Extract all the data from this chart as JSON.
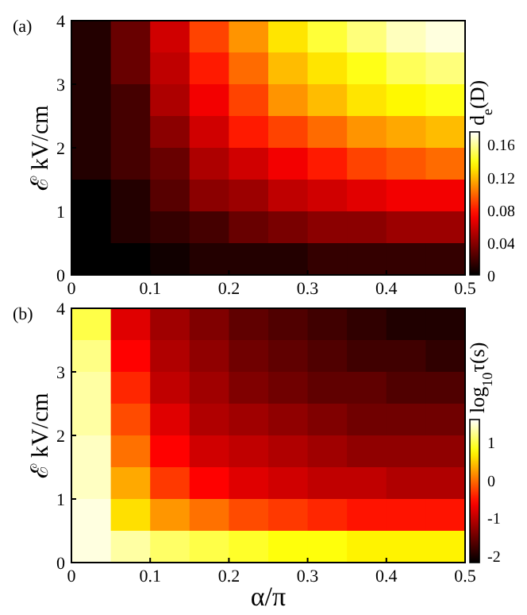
{
  "chart_data": [
    {
      "type": "heatmap",
      "title": "(a)",
      "ylabel": "ℰ  kV/cm",
      "clabel": "d$_{e}$(D)",
      "xlim": [
        0,
        0.5
      ],
      "ylim": [
        0,
        4
      ],
      "xticks": [
        0,
        0.1,
        0.2,
        0.3,
        0.4,
        0.5
      ],
      "yticks": [
        0,
        1,
        2,
        3,
        4
      ],
      "clim": [
        0,
        0.175
      ],
      "cticks": [
        0,
        0.04,
        0.08,
        0.12,
        0.16
      ],
      "cells": [
        [
          0.01,
          0.03,
          0.06,
          0.09,
          0.11,
          0.13,
          0.145,
          0.155,
          0.165,
          0.17
        ],
        [
          0.01,
          0.03,
          0.055,
          0.08,
          0.1,
          0.12,
          0.13,
          0.14,
          0.15,
          0.155
        ],
        [
          0.01,
          0.02,
          0.05,
          0.07,
          0.09,
          0.11,
          0.12,
          0.13,
          0.135,
          0.14
        ],
        [
          0.01,
          0.02,
          0.04,
          0.06,
          0.08,
          0.09,
          0.1,
          0.11,
          0.115,
          0.12
        ],
        [
          0.01,
          0.02,
          0.03,
          0.05,
          0.06,
          0.07,
          0.08,
          0.09,
          0.095,
          0.1
        ],
        [
          0,
          0.01,
          0.025,
          0.04,
          0.045,
          0.055,
          0.06,
          0.065,
          0.07,
          0.07
        ],
        [
          0,
          0.01,
          0.015,
          0.02,
          0.03,
          0.035,
          0.04,
          0.04,
          0.045,
          0.045
        ],
        [
          0,
          0,
          0.005,
          0.01,
          0.01,
          0.01,
          0.015,
          0.015,
          0.015,
          0.015
        ]
      ]
    },
    {
      "type": "heatmap",
      "title": "(b)",
      "xlabel": "α/π",
      "ylabel": "ℰ  kV/cm",
      "clabel": "log$_{10}$τ(s)",
      "xlim": [
        0,
        0.5
      ],
      "ylim": [
        0,
        4
      ],
      "xticks": [
        0,
        0.1,
        0.2,
        0.3,
        0.4,
        0.5
      ],
      "yticks": [
        0,
        1,
        2,
        3,
        4
      ],
      "clim": [
        -2.2,
        1.6
      ],
      "cticks": [
        -2,
        -1,
        0,
        1
      ],
      "cells": [
        [
          1,
          -0.8,
          -1.2,
          -1.4,
          -1.6,
          -1.7,
          -1.8,
          -1.9,
          -2,
          -2
        ],
        [
          1.2,
          -0.6,
          -1.1,
          -1.3,
          -1.5,
          -1.6,
          -1.7,
          -1.8,
          -1.8,
          -1.9
        ],
        [
          1.3,
          -0.4,
          -1,
          -1.2,
          -1.4,
          -1.5,
          -1.6,
          -1.6,
          -1.7,
          -1.7
        ],
        [
          1.3,
          -0.2,
          -0.8,
          -1.1,
          -1.2,
          -1.3,
          -1.4,
          -1.5,
          -1.5,
          -1.5
        ],
        [
          1.4,
          0,
          -0.6,
          -0.9,
          -1,
          -1.1,
          -1.2,
          -1.3,
          -1.3,
          -1.3
        ],
        [
          1.4,
          0.3,
          -0.3,
          -0.6,
          -0.8,
          -0.9,
          -1,
          -1,
          -1.1,
          -1.1
        ],
        [
          1.5,
          0.6,
          0.2,
          0,
          -0.2,
          -0.3,
          -0.4,
          -0.5,
          -0.5,
          -0.5
        ],
        [
          1.5,
          1.3,
          1.1,
          1,
          0.9,
          0.8,
          0.8,
          0.7,
          0.7,
          0.7
        ]
      ]
    }
  ]
}
